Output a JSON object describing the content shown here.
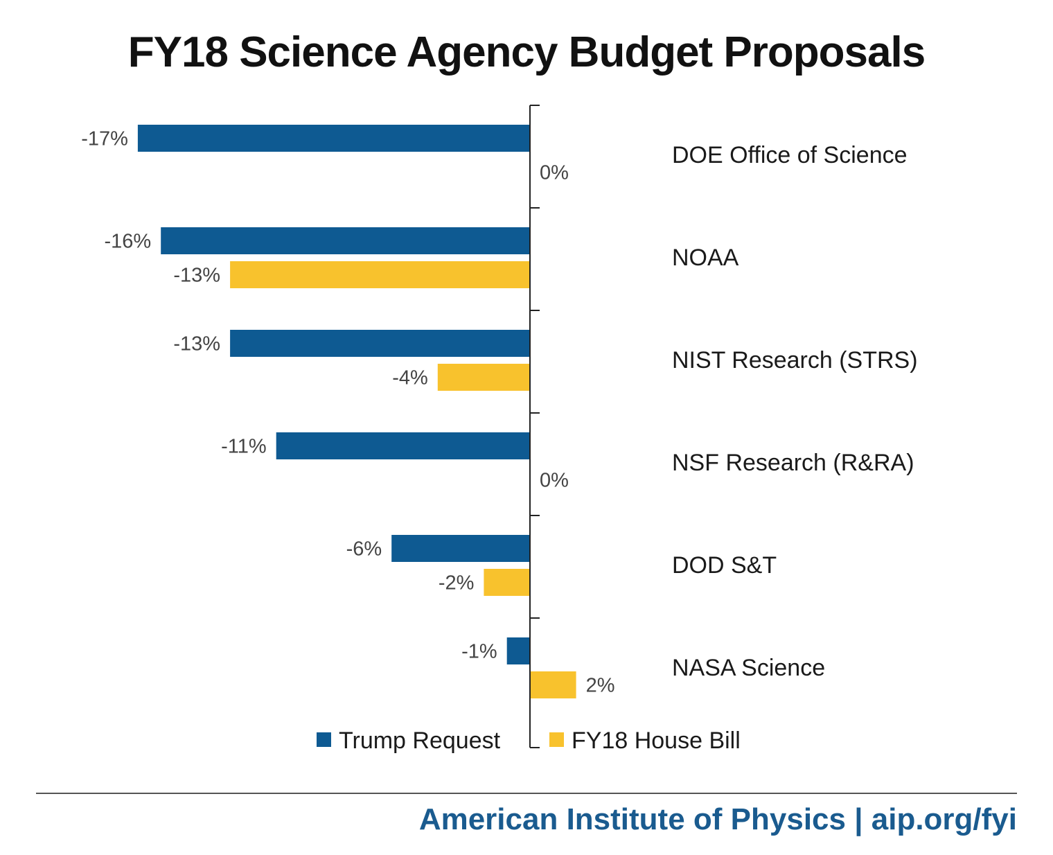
{
  "chart_data": {
    "type": "bar",
    "orientation": "horizontal",
    "title": "FY18 Science Agency Budget Proposals",
    "categories": [
      "DOE Office of Science",
      "NOAA",
      "NIST Research (STRS)",
      "NSF Research (R&RA)",
      "DOD S&T",
      "NASA Science"
    ],
    "series": [
      {
        "name": "Trump Request",
        "color": "#0e5a92",
        "values": [
          -17,
          -16,
          -13,
          -11,
          -6,
          -1
        ],
        "labels": [
          "-17%",
          "-16%",
          "-13%",
          "-11%",
          "-6%",
          "-1%"
        ]
      },
      {
        "name": "FY18 House Bill",
        "color": "#f8c22d",
        "values": [
          0,
          -13,
          -4,
          0,
          -2,
          2
        ],
        "labels": [
          "0%",
          "-13%",
          "-4%",
          "0%",
          "-2%",
          "2%"
        ]
      }
    ],
    "xlim": [
      -18,
      6
    ],
    "unit": "%",
    "legend_position": "bottom-center"
  },
  "footer": {
    "credit": "American Institute of Physics | aip.org/fyi"
  }
}
